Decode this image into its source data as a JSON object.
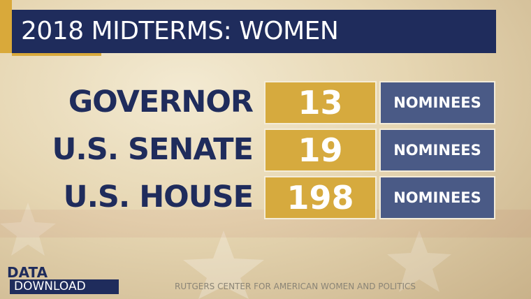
{
  "header": {
    "title": "2018 MIDTERMS: WOMEN"
  },
  "rows": [
    {
      "label": "GOVERNOR",
      "value": 13,
      "unit": "NOMINEES"
    },
    {
      "label": "U.S. SENATE",
      "value": 19,
      "unit": "NOMINEES"
    },
    {
      "label": "U.S. HOUSE",
      "value": 198,
      "unit": "NOMINEES"
    }
  ],
  "logo": {
    "line1": "DATA_",
    "line2": "DOWNLOAD"
  },
  "source": "RUTGERS CENTER FOR AMERICAN WOMEN AND POLITICS"
}
